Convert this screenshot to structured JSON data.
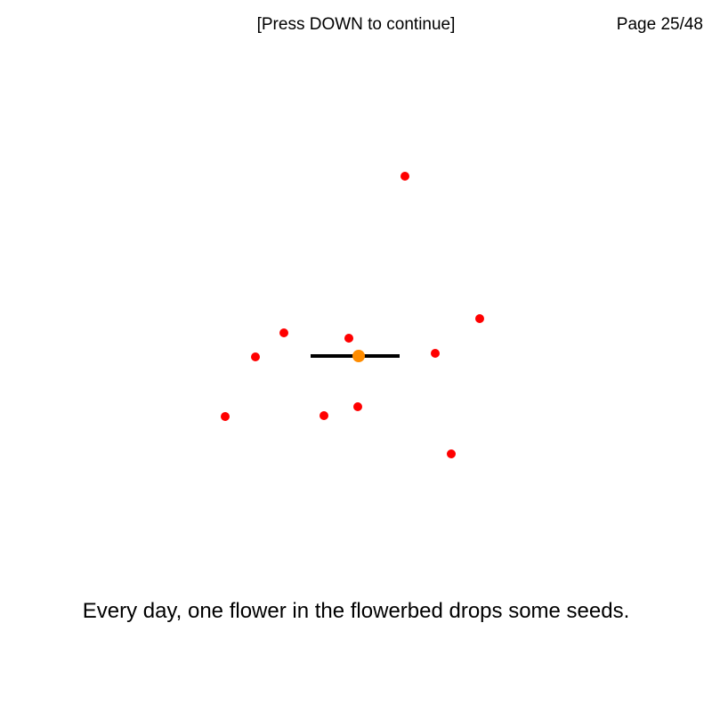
{
  "header": {
    "hint": "[Press DOWN to continue]",
    "page": "Page 25/48"
  },
  "caption": "Every day, one flower in the flowerbed drops some seeds.",
  "colors": {
    "seed": "#ff0000",
    "flower": "#ff8c00",
    "stem": "#000000",
    "background": "#ffffff"
  }
}
